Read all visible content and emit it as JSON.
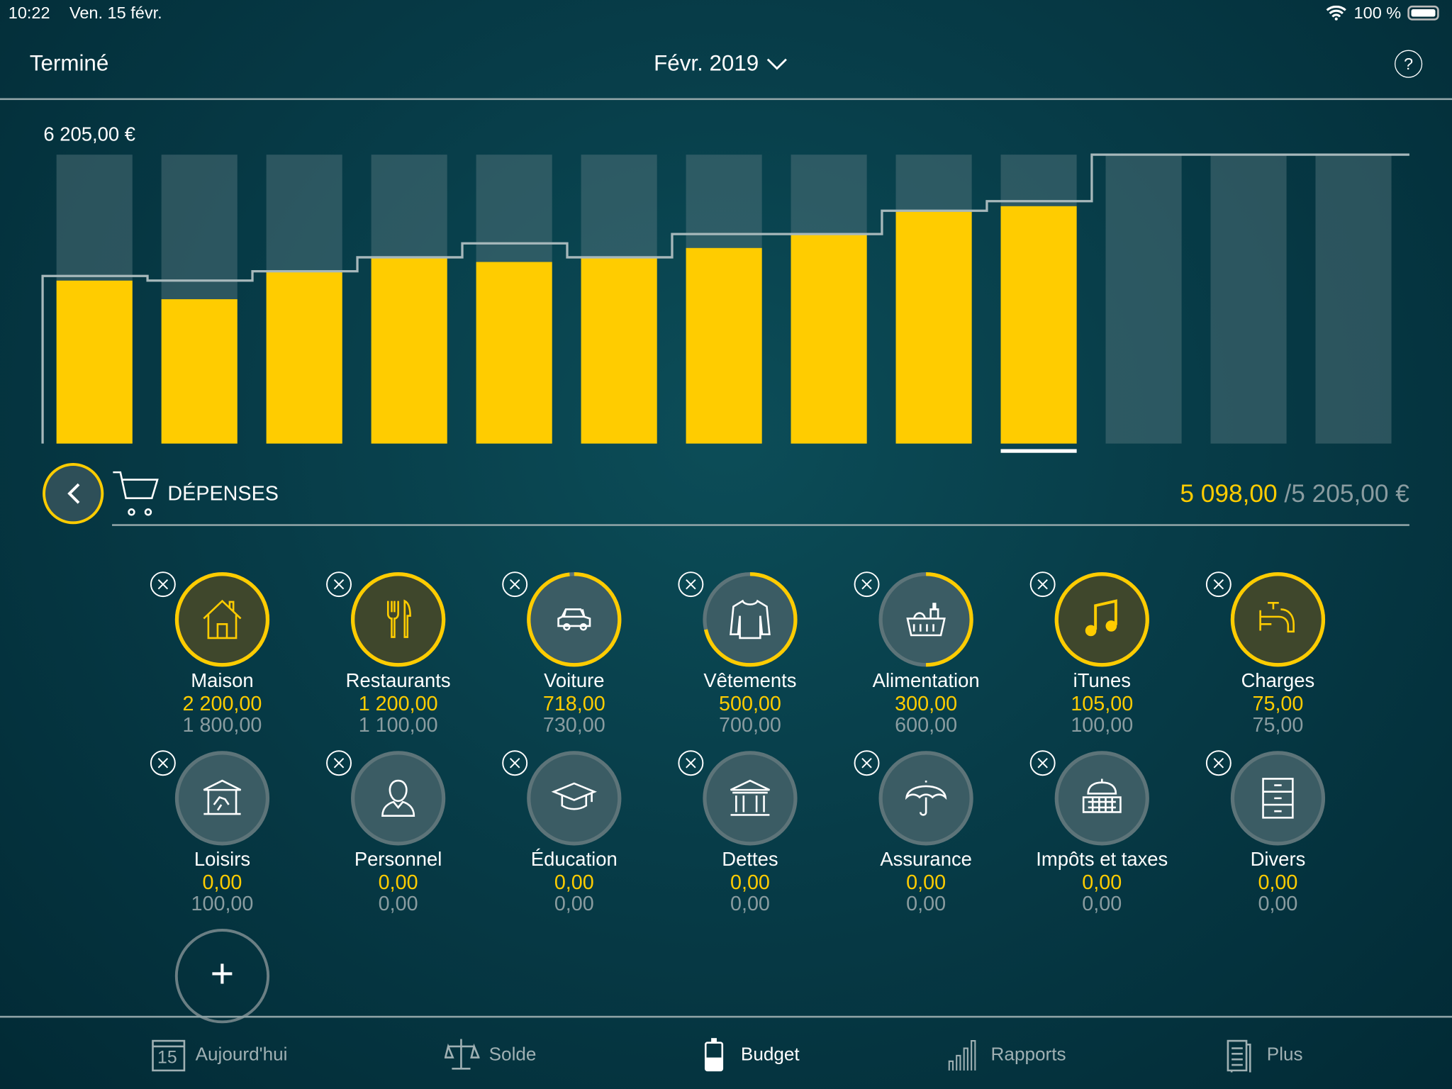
{
  "status": {
    "time": "10:22",
    "date": "Ven. 15 févr.",
    "battery": "100 %"
  },
  "nav": {
    "done": "Terminé",
    "period": "Févr. 2019",
    "help": "?"
  },
  "chart_data": {
    "type": "bar",
    "max_label": "6 205,00 €",
    "ylim": [
      0,
      6205
    ],
    "categories": [
      "",
      "",
      "",
      "",
      "",
      "",
      "",
      "",
      "",
      "",
      "",
      "",
      ""
    ],
    "series": [
      {
        "values": [
          3500,
          3100,
          3700,
          4000,
          3900,
          4000,
          4200,
          4500,
          5000,
          5098,
          null,
          null,
          null
        ]
      },
      {
        "values": [
          3600,
          3500,
          3700,
          4000,
          4300,
          4000,
          4500,
          4500,
          5000,
          5205,
          6205,
          6205,
          6205
        ],
        "style": "step-line"
      }
    ],
    "selected_index": 9,
    "colors": {
      "spent": "#ffcc00",
      "background_bar": "#5a7a80",
      "budget_line": "#a7b8bb"
    }
  },
  "section": {
    "title": "DÉPENSES",
    "spent": "5 098,00",
    "budget": "/5 205,00 €"
  },
  "categories": [
    {
      "name": "Maison",
      "spent": "2 200,00",
      "budget": "1 800,00",
      "icon": "house-icon"
    },
    {
      "name": "Restaurants",
      "spent": "1 200,00",
      "budget": "1 100,00",
      "icon": "cutlery-icon"
    },
    {
      "name": "Voiture",
      "spent": "718,00",
      "budget": "730,00",
      "icon": "car-icon"
    },
    {
      "name": "Vêtements",
      "spent": "500,00",
      "budget": "700,00",
      "icon": "shirt-icon"
    },
    {
      "name": "Alimentation",
      "spent": "300,00",
      "budget": "600,00",
      "icon": "basket-icon"
    },
    {
      "name": "iTunes",
      "spent": "105,00",
      "budget": "100,00",
      "icon": "music-note-icon"
    },
    {
      "name": "Charges",
      "spent": "75,00",
      "budget": "75,00",
      "icon": "faucet-icon"
    },
    {
      "name": "Loisirs",
      "spent": "0,00",
      "budget": "100,00",
      "icon": "carousel-icon"
    },
    {
      "name": "Personnel",
      "spent": "0,00",
      "budget": "0,00",
      "icon": "person-icon"
    },
    {
      "name": "Éducation",
      "spent": "0,00",
      "budget": "0,00",
      "icon": "graduation-cap-icon"
    },
    {
      "name": "Dettes",
      "spent": "0,00",
      "budget": "0,00",
      "icon": "bank-icon"
    },
    {
      "name": "Assurance",
      "spent": "0,00",
      "budget": "0,00",
      "icon": "umbrella-icon"
    },
    {
      "name": "Impôts et taxes",
      "spent": "0,00",
      "budget": "0,00",
      "icon": "government-icon"
    },
    {
      "name": "Divers",
      "spent": "0,00",
      "budget": "0,00",
      "icon": "cabinet-icon"
    }
  ],
  "tabs": [
    {
      "label": "Aujourd'hui",
      "icon": "calendar-icon",
      "day": "15"
    },
    {
      "label": "Solde",
      "icon": "scale-icon"
    },
    {
      "label": "Budget",
      "icon": "budget-icon",
      "active": true
    },
    {
      "label": "Rapports",
      "icon": "bar-chart-icon"
    },
    {
      "label": "Plus",
      "icon": "document-icon"
    }
  ],
  "colors": {
    "accent": "#ffcc00",
    "muted": "#8a9ca0"
  }
}
